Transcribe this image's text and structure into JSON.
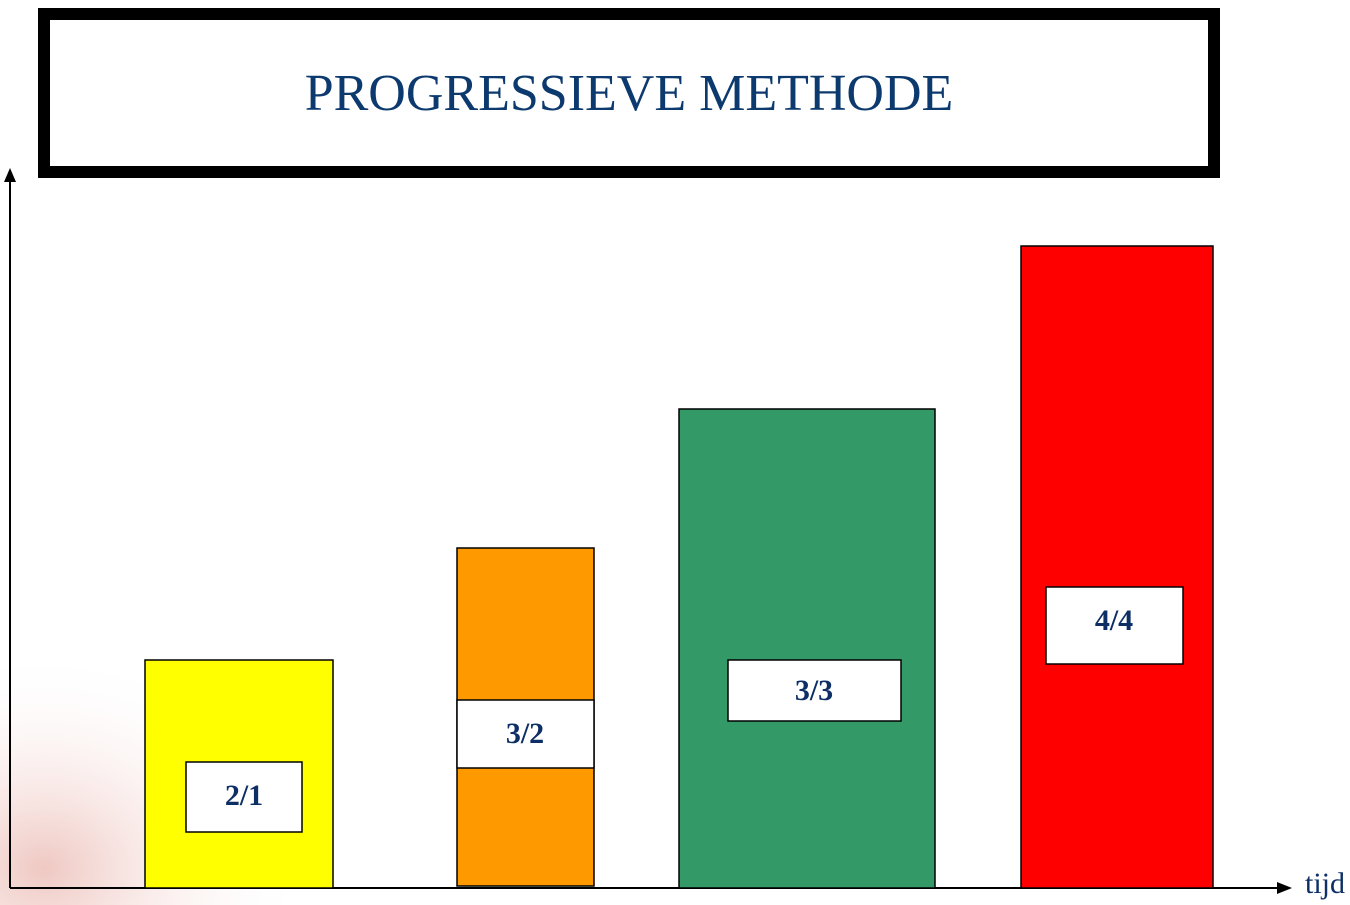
{
  "header": {
    "title": "PROGRESSIEVE METHODE"
  },
  "blocks": [
    {
      "label": "2/1"
    },
    {
      "label": "3/2"
    },
    {
      "label": "3/3"
    },
    {
      "label": "4/4"
    }
  ],
  "axis": {
    "x_label": "tijd"
  }
}
